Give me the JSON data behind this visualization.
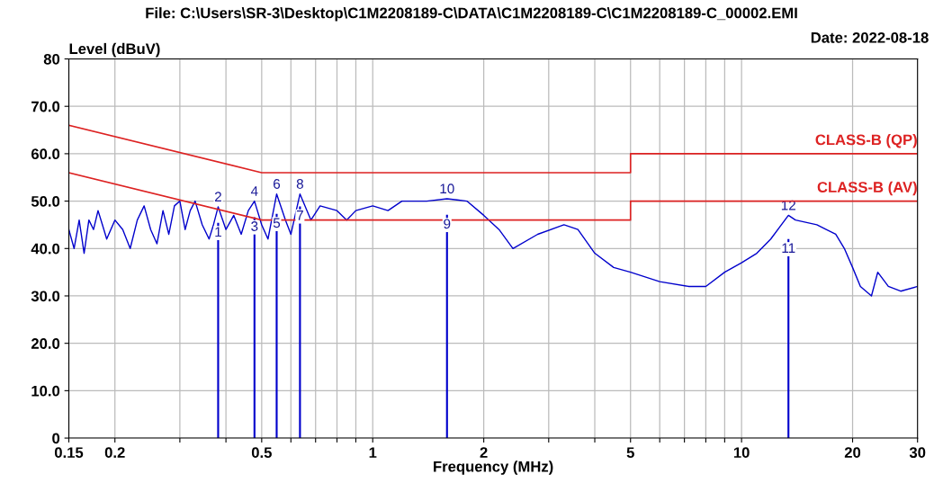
{
  "chart_data": {
    "type": "line",
    "title": "File: C:\\Users\\SR-3\\Desktop\\C1M2208189-C\\DATA\\C1M2208189-C\\C1M2208189-C_00002.EMI",
    "xlabel": "Frequency (MHz)",
    "ylabel": "Level (dBuV)",
    "log": "x",
    "grid": true,
    "legend": false,
    "xlim": [
      0.15,
      30
    ],
    "ylim": [
      0,
      80
    ],
    "xticks": [
      0.15,
      0.2,
      {
        "value": 0.3,
        "label": null
      },
      {
        "value": 0.4,
        "label": null
      },
      0.5,
      {
        "value": 0.6,
        "label": null
      },
      {
        "value": 0.7,
        "label": null
      },
      {
        "value": 0.8,
        "label": null
      },
      {
        "value": 0.9,
        "label": null
      },
      1,
      2,
      {
        "value": 3,
        "label": null
      },
      {
        "value": 4,
        "label": null
      },
      5,
      {
        "value": 6,
        "label": null
      },
      {
        "value": 7,
        "label": null
      },
      {
        "value": 8,
        "label": null
      },
      {
        "value": 9,
        "label": null
      },
      10,
      20,
      30
    ],
    "yticks": [
      0,
      {
        "value": 10,
        "label": "10.0"
      },
      {
        "value": 20,
        "label": "20.0"
      },
      {
        "value": 30,
        "label": "30.0"
      },
      {
        "value": 40,
        "label": "40.0"
      },
      {
        "value": 50,
        "label": "50.0"
      },
      {
        "value": 60,
        "label": "60.0"
      },
      {
        "value": 70,
        "label": "70.0"
      },
      80
    ],
    "series": [
      {
        "color": "#0000cc",
        "x": [
          0.15,
          0.155,
          0.16,
          0.165,
          0.17,
          0.175,
          0.18,
          0.185,
          0.19,
          0.2,
          0.21,
          0.22,
          0.23,
          0.24,
          0.25,
          0.26,
          0.27,
          0.28,
          0.29,
          0.3,
          0.31,
          0.32,
          0.33,
          0.345,
          0.36,
          0.37,
          0.381,
          0.4,
          0.42,
          0.44,
          0.46,
          0.478,
          0.5,
          0.52,
          0.549,
          0.58,
          0.6,
          0.635,
          0.68,
          0.72,
          0.8,
          0.85,
          0.9,
          1.0,
          1.1,
          1.2,
          1.4,
          1.59,
          1.8,
          2.0,
          2.2,
          2.4,
          2.8,
          3.3,
          3.6,
          4.0,
          4.5,
          5.0,
          6.0,
          7.2,
          8.0,
          9.0,
          10,
          11,
          12,
          13.4,
          14,
          16,
          18,
          19,
          20,
          21,
          22.5,
          23.4,
          25,
          27,
          30
        ],
        "values": [
          44,
          40,
          46,
          39,
          46,
          44,
          48,
          45,
          42,
          46,
          44,
          40,
          46,
          49,
          44,
          41,
          48,
          43,
          49,
          50,
          44,
          48,
          50,
          45,
          42,
          45,
          48.8,
          44,
          47,
          43,
          48,
          50,
          45,
          42,
          51.5,
          46,
          43,
          51.5,
          46,
          49,
          48,
          46,
          48,
          49,
          48,
          50,
          50,
          50.5,
          50,
          47,
          44,
          40,
          43,
          45,
          44,
          39,
          36,
          35,
          33,
          32,
          32,
          35,
          37,
          39,
          42,
          47,
          46,
          45,
          43,
          40,
          36,
          32,
          30,
          35,
          32,
          31,
          32
        ]
      },
      {
        "type": "line",
        "name": "CLASS-B (QP)",
        "color": "#dd2222",
        "x": [
          0.15,
          0.5,
          5,
          5,
          30
        ],
        "values": [
          66,
          56,
          56,
          60,
          60
        ]
      },
      {
        "type": "line",
        "name": "CLASS-B (AV)",
        "color": "#dd2222",
        "x": [
          0.15,
          0.5,
          5,
          5,
          30
        ],
        "values": [
          56,
          46,
          46,
          50,
          50
        ]
      },
      {
        "type": "bar",
        "color": "#0000cc",
        "x": [
          0.381,
          0.478,
          0.549,
          0.635,
          1.59,
          13.4
        ],
        "values": [
          45.4,
          46.6,
          47.3,
          48.9,
          47.1,
          42.0
        ]
      }
    ],
    "annotations": [
      "Date: 2022-08-18",
      {
        "text": "1",
        "x": 0.381,
        "y": 45.4
      },
      {
        "text": "2",
        "x": 0.381,
        "y": 48.8
      },
      {
        "text": "3",
        "x": 0.478,
        "y": 46.6
      },
      {
        "text": "4",
        "x": 0.478,
        "y": 50
      },
      {
        "text": "5",
        "x": 0.549,
        "y": 47.3
      },
      {
        "text": "6",
        "x": 0.549,
        "y": 51.5
      },
      {
        "text": "7",
        "x": 0.635,
        "y": 48.9
      },
      {
        "text": "8",
        "x": 0.635,
        "y": 51.5
      },
      {
        "text": "9",
        "x": 1.59,
        "y": 47.1
      },
      {
        "text": "10",
        "x": 1.59,
        "y": 50.5
      },
      {
        "text": "11",
        "x": 13.4,
        "y": 42.0
      },
      {
        "text": "12",
        "x": 13.4,
        "y": 47
      }
    ]
  }
}
